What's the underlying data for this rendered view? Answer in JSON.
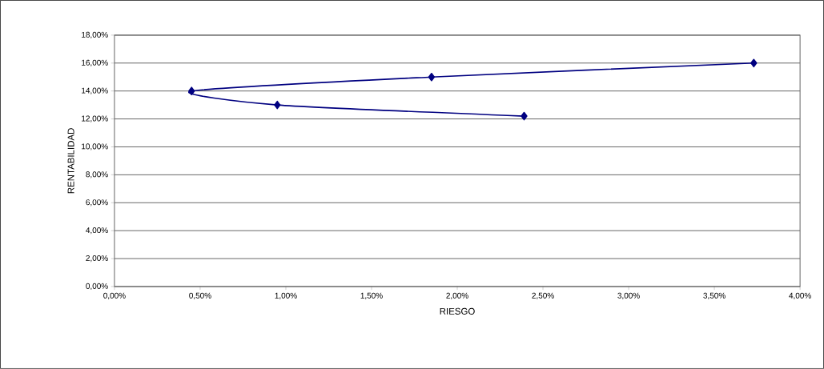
{
  "chart_data": {
    "type": "line",
    "xlabel": "RIESGO",
    "ylabel": "RENTABILIDAD",
    "x": [
      2.39,
      0.95,
      0.45,
      1.85,
      3.73
    ],
    "series": [
      {
        "color": "#000080",
        "values": [
          12.2,
          13.0,
          14.0,
          15.0,
          16.0
        ]
      }
    ],
    "marker": "diamond",
    "grid": "y",
    "xlim": [
      0,
      4
    ],
    "ylim": [
      0,
      18
    ],
    "xticks": [
      {
        "value": 0,
        "label": "0,00%"
      },
      {
        "value": 0.5,
        "label": "0,50%"
      },
      {
        "value": 1,
        "label": "1,00%"
      },
      {
        "value": 1.5,
        "label": "1,50%"
      },
      {
        "value": 2,
        "label": "2,00%"
      },
      {
        "value": 2.5,
        "label": "2,50%"
      },
      {
        "value": 3,
        "label": "3,00%"
      },
      {
        "value": 3.5,
        "label": "3,50%"
      },
      {
        "value": 4,
        "label": "4,00%"
      }
    ],
    "yticks": [
      {
        "value": 0,
        "label": "0,00%"
      },
      {
        "value": 2,
        "label": "2,00%"
      },
      {
        "value": 4,
        "label": "4,00%"
      },
      {
        "value": 6,
        "label": "6,00%"
      },
      {
        "value": 8,
        "label": "8,00%"
      },
      {
        "value": 10,
        "label": "10,00%"
      },
      {
        "value": 12,
        "label": "12,00%"
      },
      {
        "value": 14,
        "label": "14,00%"
      },
      {
        "value": 16,
        "label": "16,00%"
      },
      {
        "value": 18,
        "label": "18,00%"
      }
    ]
  }
}
